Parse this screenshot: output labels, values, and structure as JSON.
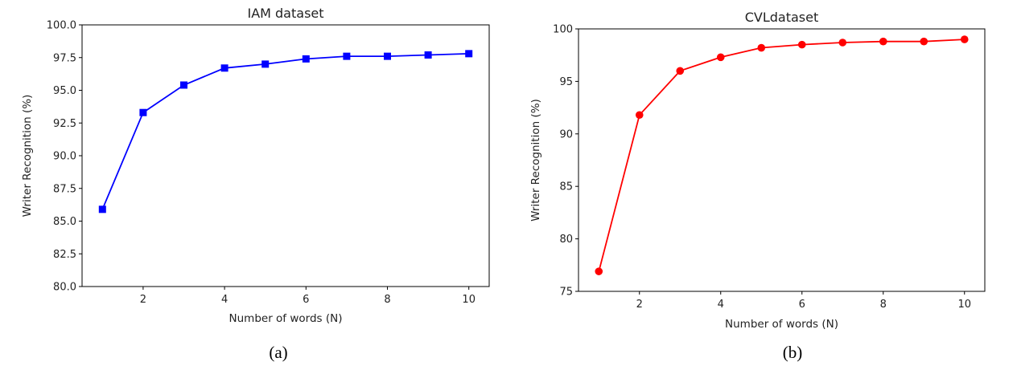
{
  "chart_data": [
    {
      "type": "line",
      "title": "IAM dataset",
      "xlabel": "Number of words (N)",
      "ylabel": "Writer Recognition (%)",
      "caption": "(a)",
      "x": [
        1,
        2,
        3,
        4,
        5,
        6,
        7,
        8,
        9,
        10
      ],
      "series": [
        {
          "values": [
            85.9,
            93.3,
            95.4,
            96.7,
            97.0,
            97.4,
            97.6,
            97.6,
            97.7,
            97.8
          ],
          "color": "#0000ff",
          "marker": "square"
        }
      ],
      "xlim": [
        0.5,
        10.5
      ],
      "ylim": [
        80,
        100
      ],
      "xticks": [
        2,
        4,
        6,
        8,
        10
      ],
      "xtick_labels": [
        "2",
        "4",
        "6",
        "8",
        "10"
      ],
      "yticks": [
        80,
        82.5,
        85,
        87.5,
        90,
        92.5,
        95,
        97.5,
        100
      ],
      "ytick_labels": [
        "80.0",
        "82.5",
        "85.0",
        "87.5",
        "90.0",
        "92.5",
        "95.0",
        "97.5",
        "100.0"
      ],
      "grid": false,
      "legend": "none"
    },
    {
      "type": "line",
      "title": "CVLdataset",
      "xlabel": "Number of words (N)",
      "ylabel": "Writer Recognition (%)",
      "caption": "(b)",
      "x": [
        1,
        2,
        3,
        4,
        5,
        6,
        7,
        8,
        9,
        10
      ],
      "series": [
        {
          "values": [
            76.9,
            91.8,
            96.0,
            97.3,
            98.2,
            98.5,
            98.7,
            98.8,
            98.8,
            99.0
          ],
          "color": "#ff0000",
          "marker": "circle"
        }
      ],
      "xlim": [
        0.5,
        10.5
      ],
      "ylim": [
        75,
        100
      ],
      "xticks": [
        2,
        4,
        6,
        8,
        10
      ],
      "xtick_labels": [
        "2",
        "4",
        "6",
        "8",
        "10"
      ],
      "yticks": [
        75,
        80,
        85,
        90,
        95,
        100
      ],
      "ytick_labels": [
        "75",
        "80",
        "85",
        "90",
        "95",
        "100"
      ],
      "grid": false,
      "legend": "none"
    }
  ]
}
